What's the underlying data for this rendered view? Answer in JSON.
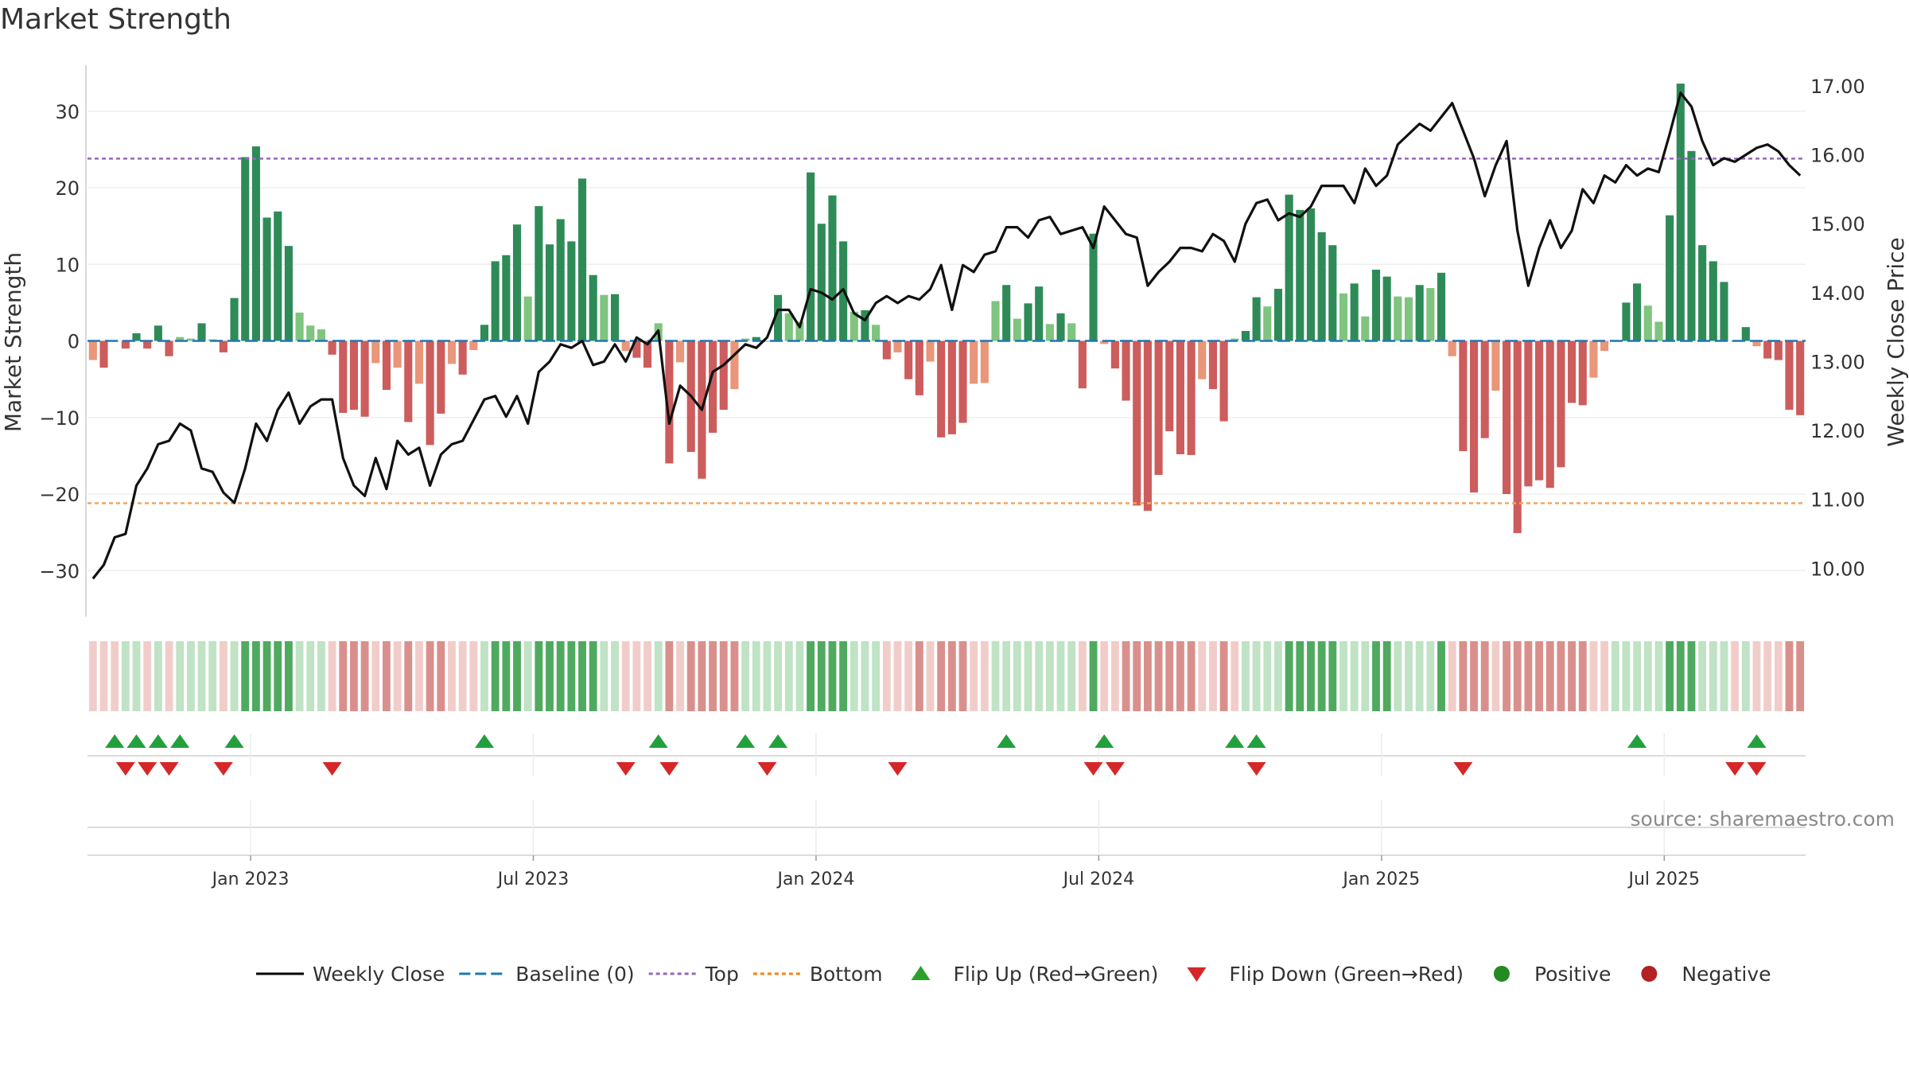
{
  "title": "Market Strength",
  "source": "source: sharemaestro.com",
  "chart_data": {
    "type": "bar",
    "y_left_label": "Market Strength",
    "y_right_label": "Weekly Close Price",
    "y_left_ticks": [
      "30",
      "20",
      "10",
      "0",
      "−10",
      "−20",
      "−30"
    ],
    "y_left_tick_values": [
      30,
      20,
      10,
      0,
      -10,
      -20,
      -30
    ],
    "y_left_range": [
      -36,
      36
    ],
    "y_right_ticks": [
      "17.00",
      "16.00",
      "15.00",
      "14.00",
      "13.00",
      "12.00",
      "11.00",
      "10.00"
    ],
    "y_right_tick_values": [
      17,
      16,
      15,
      14,
      13,
      12,
      11,
      10
    ],
    "y_right_range": [
      9.3,
      17.3
    ],
    "x_ticks": [
      "Jan 2023",
      "Jul 2023",
      "Jan 2024",
      "Jul 2024",
      "Jan 2025",
      "Jul 2025"
    ],
    "x_tick_weeks": [
      14.5,
      40.5,
      66.5,
      92.5,
      118.5,
      144.5
    ],
    "top_line": 23.8,
    "bottom_line": -21.2,
    "baseline": 0,
    "strength": [
      -2.5,
      -3.5,
      0,
      -1,
      1,
      -1,
      2,
      -2,
      0.5,
      0.3,
      2.3,
      0.2,
      -1.5,
      5.6,
      24,
      25.4,
      16.1,
      16.9,
      12.4,
      3.7,
      2,
      1.5,
      -1.8,
      -9.4,
      -9,
      -9.9,
      -2.9,
      -6.4,
      -3.5,
      -10.6,
      -5.6,
      -13.6,
      -9.5,
      -3,
      -4.4,
      -1.2,
      2.1,
      10.4,
      11.2,
      15.2,
      5.8,
      17.6,
      12.6,
      15.9,
      13,
      21.2,
      8.6,
      6,
      6.1,
      -1.3,
      -2.2,
      -3.5,
      2.3,
      -16,
      -2.8,
      -14.5,
      -18,
      -12,
      -9,
      -6.3,
      0.3,
      0.5,
      0,
      6,
      3.6,
      2.5,
      22,
      15.3,
      19,
      13,
      3.8,
      4,
      2.1,
      -2.4,
      -1.5,
      -5,
      -7.1,
      -2.7,
      -12.6,
      -12.2,
      -10.7,
      -5.6,
      -5.5,
      5.2,
      7.3,
      2.9,
      4.9,
      7.1,
      2.2,
      3.6,
      2.3,
      -6.2,
      14,
      -0.4,
      -3.6,
      -7.8,
      -21.5,
      -22.2,
      -17.5,
      -11.8,
      -14.8,
      -14.9,
      -5,
      -6.3,
      -10.5,
      0.3,
      1.3,
      5.7,
      4.5,
      6.8,
      19.1,
      17.1,
      17.3,
      14.2,
      12.5,
      6.2,
      7.5,
      3.2,
      9.3,
      8.4,
      5.8,
      5.7,
      7.3,
      6.9,
      8.9,
      -2,
      -14.4,
      -19.8,
      -12.7,
      -6.5,
      -20,
      -25.1,
      -19,
      -18.2,
      -19.2,
      -16.5,
      -8.1,
      -8.4,
      -4.8,
      -1.3,
      0,
      5,
      7.5,
      4.6,
      2.5,
      16.4,
      33.6,
      24.8,
      12.5,
      10.4,
      7.7,
      0,
      1.8,
      -0.7,
      -2.3,
      -2.5,
      -9,
      -9.7
    ],
    "weekly_close": [
      9.85,
      10.05,
      10.45,
      10.5,
      11.2,
      11.45,
      11.8,
      11.85,
      12.1,
      12,
      11.45,
      11.4,
      11.1,
      10.95,
      11.45,
      12.1,
      11.85,
      12.3,
      12.55,
      12.1,
      12.35,
      12.45,
      12.45,
      11.6,
      11.2,
      11.05,
      11.6,
      11.15,
      11.85,
      11.65,
      11.75,
      11.2,
      11.65,
      11.8,
      11.85,
      12.15,
      12.45,
      12.5,
      12.2,
      12.5,
      12.1,
      12.85,
      13,
      13.25,
      13.2,
      13.3,
      12.95,
      13,
      13.25,
      13,
      13.35,
      13.25,
      13.45,
      12.1,
      12.65,
      12.5,
      12.3,
      12.85,
      12.95,
      13.1,
      13.25,
      13.2,
      13.35,
      13.75,
      13.75,
      13.5,
      14.05,
      14,
      13.9,
      14.05,
      13.7,
      13.6,
      13.85,
      13.95,
      13.85,
      13.95,
      13.9,
      14.05,
      14.4,
      13.75,
      14.4,
      14.3,
      14.55,
      14.6,
      14.95,
      14.95,
      14.8,
      15.05,
      15.1,
      14.85,
      14.9,
      14.95,
      14.65,
      15.25,
      15.05,
      14.85,
      14.8,
      14.1,
      14.3,
      14.45,
      14.65,
      14.65,
      14.6,
      14.85,
      14.75,
      14.45,
      15,
      15.3,
      15.35,
      15.05,
      15.15,
      15.1,
      15.25,
      15.55,
      15.55,
      15.55,
      15.3,
      15.8,
      15.55,
      15.7,
      16.15,
      16.3,
      16.45,
      16.35,
      16.55,
      16.75,
      16.35,
      15.95,
      15.4,
      15.85,
      16.2,
      14.9,
      14.1,
      14.65,
      15.05,
      14.65,
      14.9,
      15.5,
      15.3,
      15.7,
      15.6,
      15.85,
      15.7,
      15.8,
      15.75,
      16.3,
      16.9,
      16.7,
      16.2,
      15.85,
      15.95,
      15.9,
      16,
      16.1,
      16.15,
      16.05,
      15.85,
      15.7
    ],
    "regime_strip": [
      -1,
      -1,
      -1,
      1,
      1,
      -1,
      1,
      -1,
      1,
      1,
      1,
      1,
      -1,
      1,
      2,
      2,
      2,
      2,
      2,
      1,
      1,
      1,
      -1,
      -2,
      -2,
      -2,
      -1,
      -2,
      -1,
      -2,
      -1,
      -2,
      -2,
      -1,
      -1,
      -1,
      1,
      2,
      2,
      2,
      1,
      2,
      2,
      2,
      2,
      2,
      2,
      1,
      1,
      -1,
      -1,
      -1,
      1,
      -2,
      -1,
      -2,
      -2,
      -2,
      -2,
      -2,
      1,
      1,
      1,
      1,
      1,
      1,
      2,
      2,
      2,
      2,
      1,
      1,
      1,
      -1,
      -1,
      -1,
      -2,
      -1,
      -2,
      -2,
      -2,
      -1,
      -1,
      1,
      1,
      1,
      1,
      1,
      1,
      1,
      1,
      -1,
      2,
      -1,
      -1,
      -2,
      -2,
      -2,
      -2,
      -2,
      -2,
      -2,
      -1,
      -1,
      -2,
      -1,
      1,
      1,
      1,
      1,
      2,
      2,
      2,
      2,
      2,
      1,
      1,
      1,
      2,
      2,
      1,
      1,
      1,
      1,
      2,
      -1,
      -2,
      -2,
      -2,
      -1,
      -2,
      -2,
      -2,
      -2,
      -2,
      -2,
      -2,
      -2,
      -1,
      -1,
      1,
      1,
      1,
      1,
      1,
      2,
      2,
      2,
      1,
      1,
      1,
      -1,
      1,
      -1,
      -1,
      -1,
      -2,
      -2
    ],
    "flip_up_weeks": [
      2,
      4,
      6,
      8,
      13,
      36,
      52,
      60,
      63,
      84,
      93,
      105,
      107,
      142,
      153
    ],
    "flip_down_weeks": [
      3,
      5,
      7,
      12,
      22,
      49,
      53,
      62,
      74,
      92,
      94,
      107,
      126,
      151,
      153
    ],
    "legend": [
      {
        "label": "Weekly Close",
        "marker": "line-solid",
        "color": "#000000"
      },
      {
        "label": "Baseline (0)",
        "marker": "line-dash",
        "color": "#1f77b4"
      },
      {
        "label": "Top",
        "marker": "line-dot",
        "color": "#9467bd"
      },
      {
        "label": "Bottom",
        "marker": "line-dot",
        "color": "#ff7f0e"
      },
      {
        "label": "Flip Up (Red→Green)",
        "marker": "triangle-up",
        "color": "#2ca02c"
      },
      {
        "label": "Flip Down (Green→Red)",
        "marker": "triangle-down",
        "color": "#d62728"
      },
      {
        "label": "Positive",
        "marker": "circle",
        "color": "#228b22"
      },
      {
        "label": "Negative",
        "marker": "circle",
        "color": "#b22222"
      }
    ],
    "colors": {
      "positive_strong": "#2e8b57",
      "positive_weak": "#7fc47f",
      "negative_strong": "#cd5c5c",
      "negative_weak": "#e9967a",
      "top_line": "#9467bd",
      "bottom_line": "#f4a460",
      "baseline": "#1f77b4",
      "price_line": "#111111"
    }
  }
}
